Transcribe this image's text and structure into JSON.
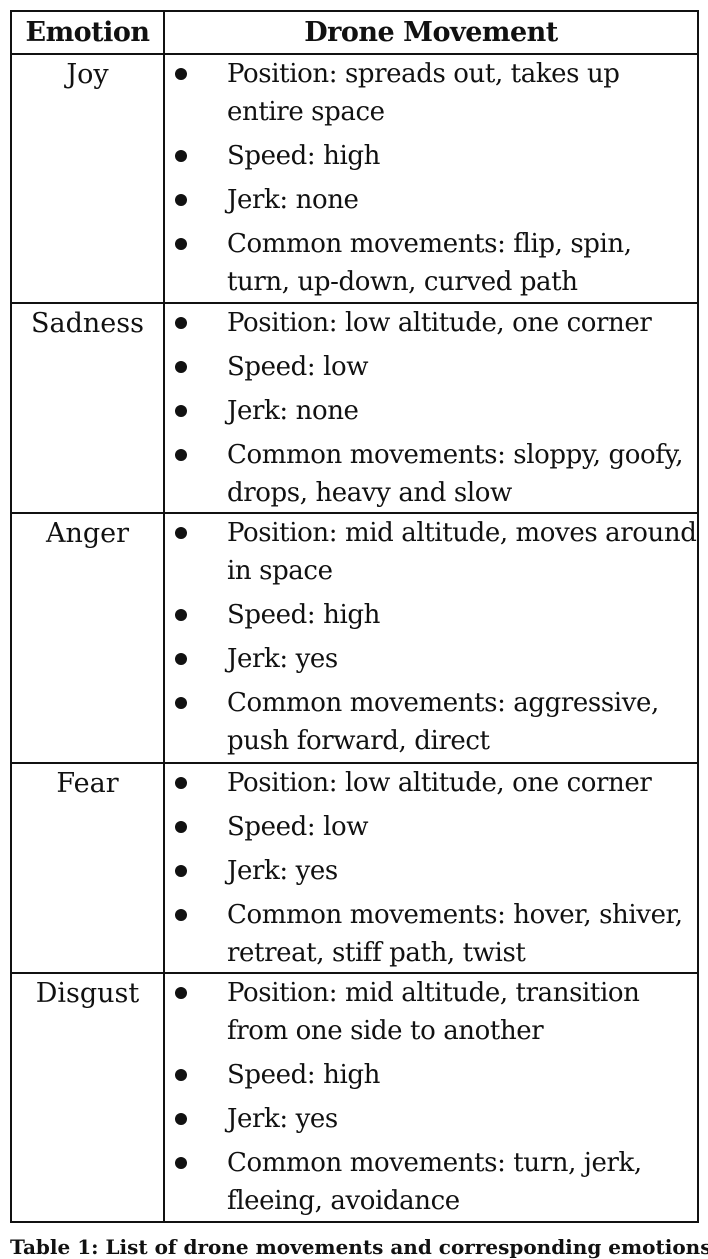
{
  "header": {
    "emotion": "Emotion",
    "movement": "Drone Movement"
  },
  "rows": [
    {
      "emotion": "Joy",
      "items": [
        "Position: spreads out, takes up entire space",
        "Speed: high",
        "Jerk: none",
        "Common movements: flip, spin, turn, up-down, curved path"
      ]
    },
    {
      "emotion": "Sadness",
      "items": [
        "Position: low altitude, one corner",
        "Speed: low",
        "Jerk: none",
        "Common movements: sloppy, goofy, drops, heavy and slow"
      ]
    },
    {
      "emotion": "Anger",
      "items": [
        "Position: mid altitude, moves around in space",
        "Speed: high",
        "Jerk: yes",
        "Common movements: aggressive, push forward, direct"
      ]
    },
    {
      "emotion": "Fear",
      "items": [
        "Position: low altitude, one corner",
        "Speed: low",
        "Jerk: yes",
        "Common movements: hover, shiver, retreat, stiff path, twist"
      ]
    },
    {
      "emotion": "Disgust",
      "items": [
        "Position: mid altitude, transition from one side to another",
        "Speed: high",
        "Jerk: yes",
        "Common movements: turn, jerk, fleeing, avoidance"
      ]
    }
  ],
  "caption": "Table 1: List of drone movements and corresponding emotions"
}
